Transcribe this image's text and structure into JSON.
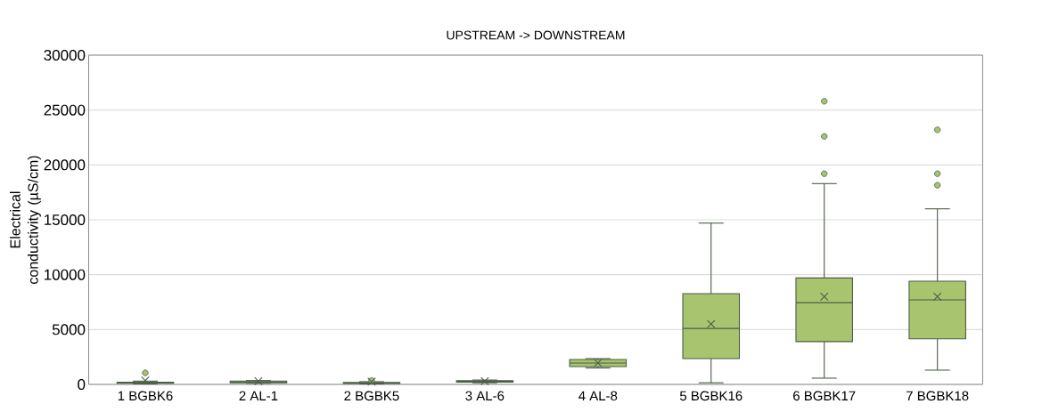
{
  "chart_data": {
    "type": "box",
    "title": "UPSTREAM  -> DOWNSTREAM",
    "ylabel": "Electrical conductivity (µS/cm)",
    "categories": [
      "1 BGBK6",
      "2 AL-1",
      "2 BGBK5",
      "3 AL-6",
      "4 AL-8",
      "5 BGBK16",
      "6 BGBK17",
      "7 BGBK18"
    ],
    "ylim": [
      0,
      30000
    ],
    "yticks": [
      0,
      5000,
      10000,
      15000,
      20000,
      25000,
      30000
    ],
    "grid": "y",
    "color": "#a9c46f",
    "boxes": [
      {
        "low": 50,
        "q1": 100,
        "median": 150,
        "q3": 200,
        "high": 300,
        "mean": 350,
        "outliers": [
          1050
        ]
      },
      {
        "low": 100,
        "q1": 150,
        "median": 220,
        "q3": 300,
        "high": 350,
        "mean": 300
      },
      {
        "low": 50,
        "q1": 80,
        "median": 120,
        "q3": 180,
        "high": 250,
        "mean": 250,
        "outliers": [
          350
        ]
      },
      {
        "low": 150,
        "q1": 200,
        "median": 280,
        "q3": 350,
        "high": 400,
        "mean": 300
      },
      {
        "low": 1500,
        "q1": 1620,
        "median": 1950,
        "q3": 2270,
        "high": 2350,
        "mean": 1950
      },
      {
        "low": 150,
        "q1": 2350,
        "median": 5100,
        "q3": 8270,
        "high": 14700,
        "mean": 5500
      },
      {
        "low": 570,
        "q1": 3900,
        "median": 7450,
        "q3": 9700,
        "high": 18300,
        "mean": 8000,
        "outliers": [
          19200,
          22600,
          25800
        ]
      },
      {
        "low": 1300,
        "q1": 4150,
        "median": 7700,
        "q3": 9400,
        "high": 16000,
        "mean": 8000,
        "outliers": [
          18150,
          19200,
          23200
        ]
      }
    ]
  }
}
